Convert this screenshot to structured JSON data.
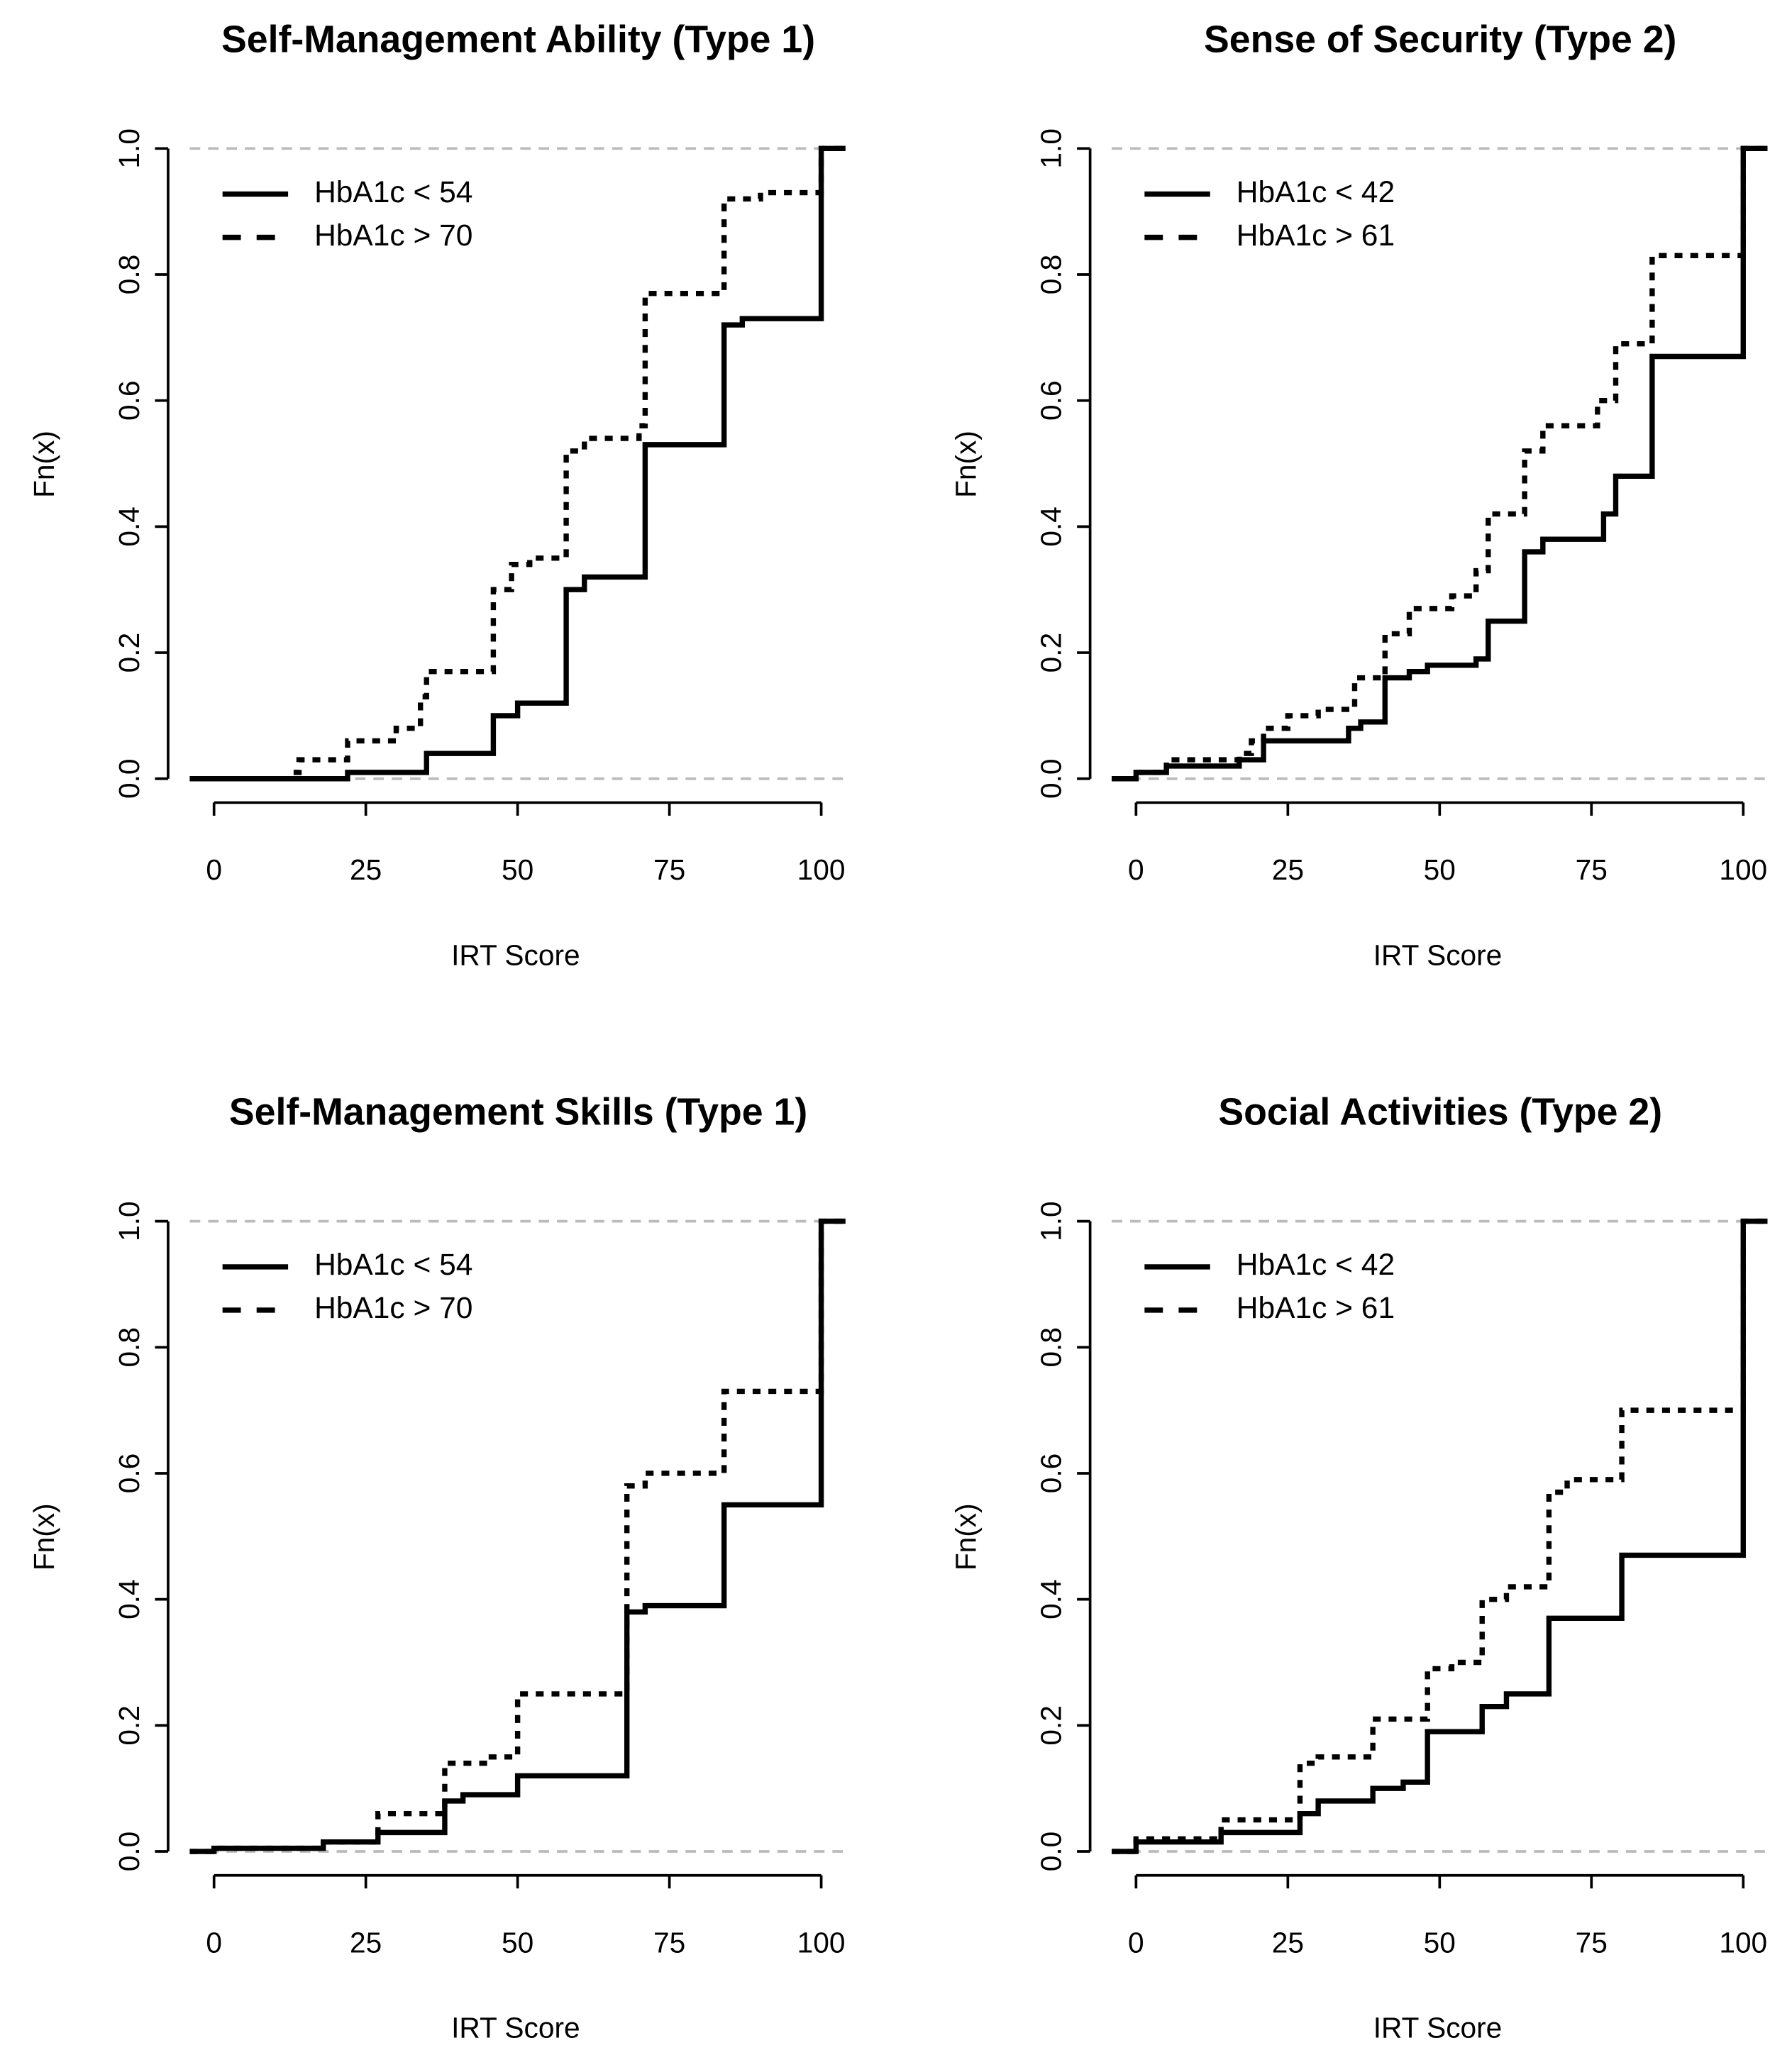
{
  "chart_data": [
    {
      "type": "step",
      "title": "Self-Management Ability (Type 1)",
      "xlabel": "IRT Score",
      "ylabel": "Fn(x)",
      "xlim": [
        -4,
        104
      ],
      "ylim": [
        -0.04,
        1.04
      ],
      "xticks": [
        0,
        25,
        50,
        75,
        100
      ],
      "yticks": [
        {
          "value": 0,
          "label": "0.0"
        },
        0.2,
        0.4,
        0.6,
        0.8,
        {
          "value": 1,
          "label": "1.0"
        }
      ],
      "hlines": [
        0,
        1
      ],
      "hline_color": "#bbbbbb",
      "legend": "topleft",
      "series": [
        {
          "name": "HbA1c < 54",
          "color": "#000000",
          "linestyle": "solid",
          "x": [
            -4,
            22,
            35,
            46,
            50,
            58,
            61,
            71,
            84,
            87,
            100
          ],
          "values": [
            0,
            0.01,
            0.04,
            0.1,
            0.12,
            0.3,
            0.32,
            0.53,
            0.72,
            0.73,
            1.0
          ]
        },
        {
          "name": "HbA1c > 70",
          "color": "#000000",
          "linestyle": "dashed",
          "x": [
            -4,
            13,
            14,
            22,
            30,
            34,
            35,
            46,
            49,
            52,
            58,
            61,
            70,
            71,
            84,
            90,
            100
          ],
          "values": [
            0,
            0.01,
            0.03,
            0.06,
            0.08,
            0.13,
            0.17,
            0.3,
            0.34,
            0.35,
            0.52,
            0.54,
            0.56,
            0.77,
            0.92,
            0.93,
            1.0
          ]
        }
      ]
    },
    {
      "type": "step",
      "title": "Sense of Security (Type 2)",
      "xlabel": "IRT Score",
      "ylabel": "Fn(x)",
      "xlim": [
        -4,
        104
      ],
      "ylim": [
        -0.04,
        1.04
      ],
      "xticks": [
        0,
        25,
        50,
        75,
        100
      ],
      "yticks": [
        {
          "value": 0,
          "label": "0.0"
        },
        0.2,
        0.4,
        0.6,
        0.8,
        {
          "value": 1,
          "label": "1.0"
        }
      ],
      "hlines": [
        0,
        1
      ],
      "hline_color": "#bbbbbb",
      "legend": "topleft",
      "series": [
        {
          "name": "HbA1c < 42",
          "color": "#000000",
          "linestyle": "solid",
          "x": [
            -4,
            0,
            5,
            17,
            21,
            35,
            37,
            41,
            45,
            48,
            56,
            58,
            64,
            67,
            77,
            79,
            85,
            100
          ],
          "values": [
            0,
            0.01,
            0.02,
            0.03,
            0.06,
            0.08,
            0.09,
            0.16,
            0.17,
            0.18,
            0.19,
            0.25,
            0.36,
            0.38,
            0.42,
            0.48,
            0.67,
            1.0
          ]
        },
        {
          "name": "HbA1c > 61",
          "color": "#000000",
          "linestyle": "dashed",
          "x": [
            -4,
            0,
            5,
            17,
            19,
            21,
            25,
            30,
            36,
            41,
            45,
            52,
            56,
            58,
            64,
            67,
            76,
            79,
            85,
            100
          ],
          "values": [
            0,
            0.01,
            0.03,
            0.04,
            0.06,
            0.08,
            0.1,
            0.11,
            0.16,
            0.23,
            0.27,
            0.29,
            0.33,
            0.42,
            0.52,
            0.56,
            0.6,
            0.69,
            0.83,
            1.0
          ]
        }
      ]
    },
    {
      "type": "step",
      "title": "Self-Management Skills (Type 1)",
      "xlabel": "IRT Score",
      "ylabel": "Fn(x)",
      "xlim": [
        -4,
        104
      ],
      "ylim": [
        -0.04,
        1.04
      ],
      "xticks": [
        0,
        25,
        50,
        75,
        100
      ],
      "yticks": [
        {
          "value": 0,
          "label": "0.0"
        },
        0.2,
        0.4,
        0.6,
        0.8,
        {
          "value": 1,
          "label": "1.0"
        }
      ],
      "hlines": [
        0,
        1
      ],
      "hline_color": "#bbbbbb",
      "legend": "topleft",
      "series": [
        {
          "name": "HbA1c < 54",
          "color": "#000000",
          "linestyle": "solid",
          "x": [
            -4,
            0,
            18,
            27,
            38,
            41,
            50,
            68,
            71,
            84,
            100
          ],
          "values": [
            0,
            0.005,
            0.015,
            0.03,
            0.08,
            0.09,
            0.12,
            0.38,
            0.39,
            0.55,
            1.0
          ]
        },
        {
          "name": "HbA1c > 70",
          "color": "#000000",
          "linestyle": "dashed",
          "x": [
            -4,
            0,
            18,
            27,
            38,
            45,
            50,
            68,
            71,
            84,
            100
          ],
          "values": [
            0,
            0.005,
            0.015,
            0.06,
            0.14,
            0.15,
            0.25,
            0.58,
            0.6,
            0.73,
            1.0
          ]
        }
      ]
    },
    {
      "type": "step",
      "title": "Social Activities (Type 2)",
      "xlabel": "IRT Score",
      "ylabel": "Fn(x)",
      "xlim": [
        -4,
        104
      ],
      "ylim": [
        -0.04,
        1.04
      ],
      "xticks": [
        0,
        25,
        50,
        75,
        100
      ],
      "yticks": [
        {
          "value": 0,
          "label": "0.0"
        },
        0.2,
        0.4,
        0.6,
        0.8,
        {
          "value": 1,
          "label": "1.0"
        }
      ],
      "hlines": [
        0,
        1
      ],
      "hline_color": "#bbbbbb",
      "legend": "topleft",
      "series": [
        {
          "name": "HbA1c < 42",
          "color": "#000000",
          "linestyle": "solid",
          "x": [
            -4,
            0,
            14,
            27,
            30,
            39,
            44,
            48,
            57,
            61,
            68,
            80,
            100
          ],
          "values": [
            0,
            0.015,
            0.03,
            0.06,
            0.08,
            0.1,
            0.11,
            0.19,
            0.23,
            0.25,
            0.37,
            0.47,
            1.0
          ]
        },
        {
          "name": "HbA1c > 61",
          "color": "#000000",
          "linestyle": "dashed",
          "x": [
            -4,
            0,
            14,
            27,
            30,
            39,
            48,
            52,
            57,
            61,
            68,
            71,
            80,
            100
          ],
          "values": [
            0,
            0.02,
            0.05,
            0.14,
            0.15,
            0.21,
            0.29,
            0.3,
            0.4,
            0.42,
            0.57,
            0.59,
            0.7,
            1.0
          ]
        }
      ]
    }
  ]
}
